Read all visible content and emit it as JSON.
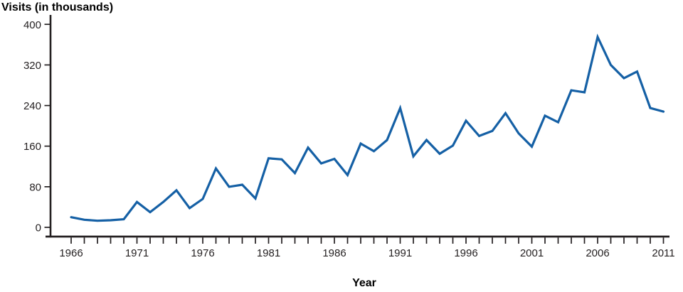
{
  "chart": {
    "y_axis_title": "Visits (in thousands)",
    "x_axis_title": "Year",
    "line_color": "#1560a5",
    "axis_color": "#231f20",
    "text_color": "#231f20"
  },
  "chart_data": {
    "type": "line",
    "title": "",
    "ylabel": "Visits (in thousands)",
    "xlabel": "Year",
    "ylim": [
      0,
      400
    ],
    "y_ticks": [
      0,
      80,
      160,
      240,
      320,
      400
    ],
    "x_labeled_ticks": [
      1966,
      1971,
      1976,
      1981,
      1986,
      1991,
      1996,
      2001,
      2006,
      2011
    ],
    "grid": "off",
    "legend": "none",
    "x": [
      1966,
      1967,
      1968,
      1969,
      1970,
      1971,
      1972,
      1973,
      1974,
      1975,
      1976,
      1977,
      1978,
      1979,
      1980,
      1981,
      1982,
      1983,
      1984,
      1985,
      1986,
      1987,
      1988,
      1989,
      1990,
      1991,
      1992,
      1993,
      1994,
      1995,
      1996,
      1997,
      1998,
      1999,
      2000,
      2001,
      2002,
      2003,
      2004,
      2005,
      2006,
      2007,
      2008,
      2009,
      2010,
      2011
    ],
    "values": [
      20,
      15,
      13,
      14,
      16,
      50,
      30,
      50,
      73,
      38,
      56,
      116,
      80,
      84,
      57,
      136,
      134,
      107,
      157,
      126,
      135,
      103,
      165,
      150,
      172,
      235,
      140,
      172,
      145,
      161,
      210,
      180,
      190,
      225,
      185,
      159,
      220,
      207,
      270,
      266,
      375,
      320,
      294,
      307,
      235,
      228
    ]
  }
}
